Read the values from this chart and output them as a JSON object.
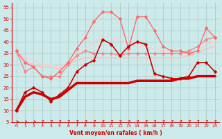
{
  "bg_color": "#cceaea",
  "grid_color": "#aacccc",
  "xlabel": "Vent moyen/en rafales ( km/h )",
  "xlabel_color": "#cc0000",
  "tick_color": "#cc0000",
  "xlim": [
    -0.5,
    23.5
  ],
  "ylim": [
    5,
    57
  ],
  "yticks": [
    5,
    10,
    15,
    20,
    25,
    30,
    35,
    40,
    45,
    50,
    55
  ],
  "xticks": [
    0,
    1,
    2,
    3,
    4,
    5,
    6,
    7,
    8,
    9,
    10,
    11,
    12,
    13,
    14,
    15,
    16,
    17,
    18,
    19,
    20,
    21,
    22,
    23
  ],
  "lines": [
    {
      "x": [
        0,
        1,
        2,
        3,
        4,
        5,
        6,
        7,
        8,
        9,
        10,
        11,
        12,
        13,
        14,
        15,
        16,
        17,
        18,
        19,
        20,
        21,
        22,
        23
      ],
      "y": [
        10,
        18,
        20,
        18,
        14,
        17,
        20,
        27,
        30,
        32,
        41,
        39,
        34,
        38,
        40,
        39,
        26,
        25,
        24,
        24,
        25,
        31,
        31,
        27
      ],
      "color": "#cc0000",
      "lw": 1.2,
      "marker": "D",
      "ms": 2.5,
      "zorder": 5
    },
    {
      "x": [
        0,
        1,
        2,
        3,
        4,
        5,
        6,
        7,
        8,
        9,
        10,
        11,
        12,
        13,
        14,
        15,
        16,
        17,
        18,
        19,
        20,
        21,
        22,
        23
      ],
      "y": [
        10,
        16,
        18,
        17,
        15,
        16,
        19,
        22,
        22,
        22,
        22,
        22,
        22,
        22,
        23,
        23,
        23,
        23,
        23,
        24,
        24,
        25,
        25,
        25
      ],
      "color": "#cc0000",
      "lw": 2.5,
      "marker": null,
      "ms": 0,
      "zorder": 4
    },
    {
      "x": [
        0,
        1,
        2,
        3,
        4,
        5,
        6,
        7,
        8,
        9,
        10,
        11,
        12,
        13,
        14,
        15,
        16,
        17,
        18,
        19,
        20,
        21,
        22,
        23
      ],
      "y": [
        36,
        27,
        29,
        25,
        25,
        25,
        30,
        34,
        36,
        35,
        35,
        35,
        34,
        35,
        35,
        35,
        35,
        35,
        35,
        35,
        36,
        38,
        41,
        42
      ],
      "color": "#ee8888",
      "lw": 1.0,
      "marker": "D",
      "ms": 2.5,
      "zorder": 3
    },
    {
      "x": [
        0,
        1,
        2,
        3,
        4,
        5,
        6,
        7,
        8,
        9,
        10,
        11,
        12,
        13,
        14,
        15,
        16,
        17,
        18,
        19,
        20,
        21,
        22,
        23
      ],
      "y": [
        36,
        32,
        30,
        29,
        29,
        28,
        30,
        32,
        33,
        33,
        33,
        33,
        33,
        33,
        33,
        33,
        33,
        33,
        33,
        33,
        34,
        35,
        37,
        38
      ],
      "color": "#ffbbbb",
      "lw": 1.0,
      "marker": null,
      "ms": 0,
      "zorder": 2
    },
    {
      "x": [
        0,
        1,
        2,
        3,
        4,
        5,
        6,
        7,
        8,
        9,
        10,
        11,
        12,
        13,
        14,
        15,
        16,
        17,
        18,
        19,
        20,
        21,
        22,
        23
      ],
      "y": [
        36,
        31,
        29,
        25,
        24,
        27,
        31,
        37,
        42,
        49,
        53,
        53,
        50,
        37,
        51,
        51,
        45,
        38,
        36,
        36,
        35,
        36,
        46,
        42
      ],
      "color": "#ff6666",
      "lw": 1.0,
      "marker": "D",
      "ms": 2.5,
      "zorder": 3
    },
    {
      "x": [
        0,
        1,
        2,
        3,
        4,
        5,
        6,
        7,
        8,
        9,
        10,
        11,
        12,
        13,
        14,
        15,
        16,
        17,
        18,
        19,
        20,
        21,
        22,
        23
      ],
      "y": [
        36,
        33,
        32,
        30,
        30,
        29,
        31,
        34,
        37,
        40,
        42,
        42,
        41,
        39,
        38,
        38,
        37,
        36,
        35,
        35,
        35,
        36,
        39,
        40
      ],
      "color": "#ffcccc",
      "lw": 1.0,
      "marker": null,
      "ms": 0,
      "zorder": 2
    }
  ]
}
